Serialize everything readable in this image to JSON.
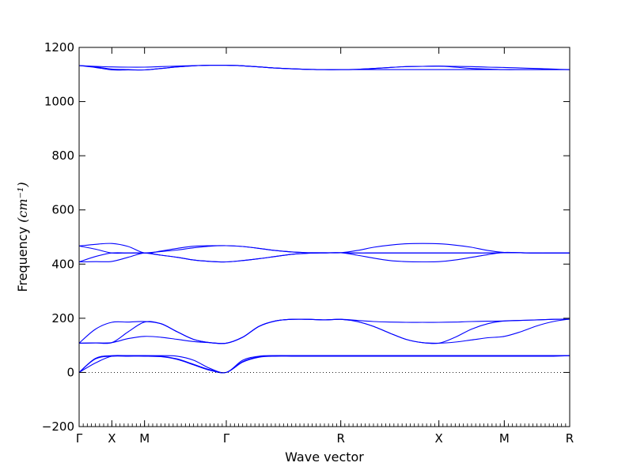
{
  "chart_data": {
    "type": "line",
    "title": "",
    "xlabel": "Wave vector",
    "ylabel": "Frequency",
    "ylabel_unit": "(cm⁻¹)",
    "ylim": [
      -200,
      1200
    ],
    "yticks": [
      -200,
      0,
      200,
      400,
      600,
      800,
      1000,
      1200
    ],
    "path_label_positions": [
      0,
      1,
      2,
      4.5,
      8,
      11,
      13,
      15
    ],
    "x_tick_labels": [
      "Γ",
      "X",
      "M",
      "Γ",
      "R",
      "X",
      "M",
      "R"
    ],
    "grid": false,
    "legend": "none",
    "line_color": "#0000ff",
    "zero_line": {
      "y": 0,
      "style": "dotted"
    },
    "x": [
      0,
      0.5,
      1,
      1.5,
      2,
      2.5,
      3,
      3.5,
      4,
      4.5,
      5,
      5.5,
      6,
      6.5,
      7,
      7.5,
      8,
      8.5,
      9,
      9.5,
      10,
      10.5,
      11,
      11.5,
      12,
      12.5,
      13,
      13.5,
      14,
      14.5,
      15
    ],
    "series": [
      {
        "values": [
          0,
          52,
          62,
          62,
          62,
          60,
          50,
          30,
          10,
          0,
          40,
          58,
          62,
          62,
          62,
          62,
          62,
          62,
          62,
          62,
          62,
          62,
          62,
          62,
          62,
          62,
          62,
          62,
          62,
          62,
          62
        ]
      },
      {
        "values": [
          0,
          50,
          60,
          60,
          60,
          58,
          48,
          28,
          8,
          0,
          38,
          56,
          60,
          60,
          60,
          60,
          60,
          60,
          60,
          60,
          60,
          60,
          60,
          60,
          60,
          60,
          60,
          60,
          60,
          60,
          62
        ]
      },
      {
        "values": [
          0,
          35,
          60,
          62,
          62,
          62,
          60,
          45,
          15,
          0,
          45,
          60,
          62,
          62,
          62,
          62,
          62,
          62,
          62,
          62,
          62,
          62,
          62,
          62,
          62,
          62,
          62,
          62,
          62,
          62,
          62
        ]
      },
      {
        "values": [
          108,
          160,
          185,
          186,
          188,
          180,
          150,
          122,
          110,
          108,
          130,
          170,
          190,
          196,
          196,
          194,
          196,
          192,
          188,
          186,
          185,
          185,
          185,
          186,
          188,
          189,
          190,
          192,
          194,
          196,
          197
        ]
      },
      {
        "values": [
          108,
          109,
          110,
          150,
          186,
          180,
          150,
          122,
          110,
          108,
          130,
          170,
          190,
          196,
          196,
          194,
          196,
          188,
          170,
          145,
          122,
          110,
          108,
          130,
          160,
          180,
          190,
          192,
          194,
          196,
          197
        ]
      },
      {
        "values": [
          108,
          109,
          110,
          125,
          133,
          130,
          122,
          114,
          110,
          108,
          130,
          170,
          190,
          196,
          196,
          194,
          196,
          188,
          170,
          145,
          122,
          110,
          108,
          112,
          120,
          128,
          133,
          150,
          172,
          188,
          197
        ]
      },
      {
        "values": [
          467,
          473,
          476,
          465,
          441,
          448,
          458,
          466,
          468,
          468,
          465,
          458,
          450,
          445,
          442,
          442,
          442,
          450,
          462,
          470,
          475,
          476,
          475,
          470,
          462,
          450,
          443,
          442,
          441,
          441,
          441
        ]
      },
      {
        "values": [
          467,
          455,
          441,
          441,
          441,
          446,
          452,
          460,
          466,
          468,
          465,
          458,
          450,
          445,
          442,
          442,
          442,
          441,
          441,
          441,
          441,
          441,
          441,
          441,
          441,
          441,
          442,
          442,
          441,
          441,
          441
        ]
      },
      {
        "values": [
          408,
          428,
          441,
          441,
          441,
          433,
          425,
          415,
          410,
          408,
          413,
          420,
          428,
          436,
          440,
          441,
          442,
          441,
          441,
          441,
          441,
          441,
          441,
          441,
          441,
          441,
          442,
          442,
          441,
          441,
          441
        ]
      },
      {
        "values": [
          408,
          409,
          410,
          425,
          441,
          433,
          425,
          415,
          410,
          408,
          413,
          420,
          428,
          436,
          440,
          441,
          442,
          433,
          422,
          413,
          409,
          408,
          409,
          415,
          425,
          435,
          443,
          442,
          441,
          441,
          441
        ]
      },
      {
        "values": [
          1133,
          1130,
          1128,
          1127,
          1127,
          1129,
          1131,
          1133,
          1134,
          1134,
          1132,
          1128,
          1124,
          1121,
          1119,
          1118,
          1118,
          1119,
          1122,
          1126,
          1129,
          1130,
          1131,
          1130,
          1129,
          1127,
          1126,
          1124,
          1122,
          1120,
          1118
        ]
      },
      {
        "values": [
          1133,
          1128,
          1120,
          1118,
          1117,
          1122,
          1128,
          1132,
          1134,
          1134,
          1132,
          1128,
          1124,
          1121,
          1119,
          1118,
          1118,
          1118,
          1118,
          1118,
          1118,
          1118,
          1118,
          1118,
          1118,
          1118,
          1118,
          1118,
          1118,
          1118,
          1118
        ]
      },
      {
        "values": [
          1133,
          1126,
          1117,
          1117,
          1117,
          1122,
          1128,
          1132,
          1134,
          1134,
          1132,
          1128,
          1124,
          1121,
          1119,
          1118,
          1118,
          1119,
          1122,
          1126,
          1129,
          1130,
          1131,
          1127,
          1122,
          1120,
          1118,
          1118,
          1118,
          1118,
          1118
        ]
      }
    ]
  }
}
